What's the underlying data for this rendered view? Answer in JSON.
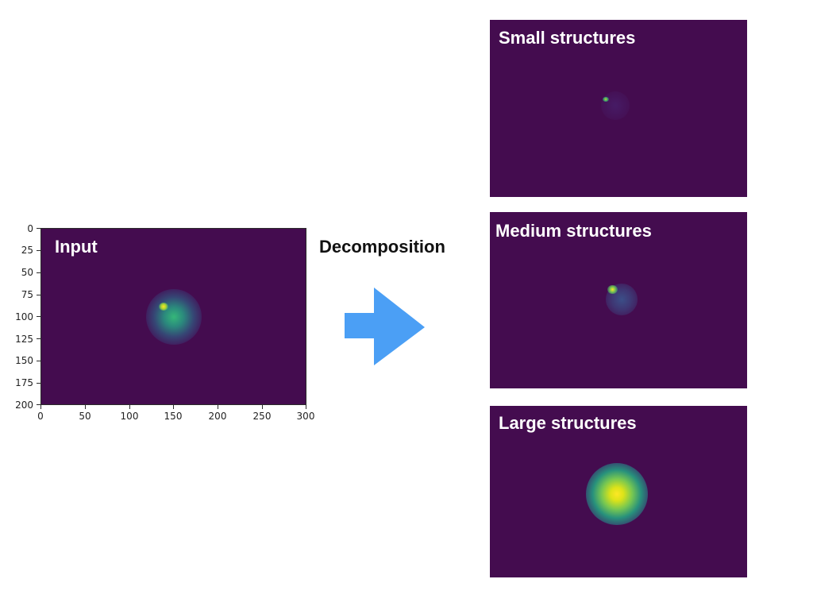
{
  "input_panel": {
    "title": "Input",
    "y_ticks": [
      "0",
      "25",
      "50",
      "75",
      "100",
      "125",
      "150",
      "175",
      "200"
    ],
    "x_ticks": [
      "0",
      "50",
      "100",
      "150",
      "200",
      "250",
      "300"
    ]
  },
  "decomposition": {
    "label": "Decomposition",
    "arrow_color": "#4b9ff5"
  },
  "output_panels": {
    "small": {
      "title": "Small structures"
    },
    "medium": {
      "title": "Medium structures"
    },
    "large": {
      "title": "Large structures"
    }
  },
  "colors": {
    "panel_background": "#440c4f",
    "peak_yellow": "#fde725",
    "mid_green": "#35b779",
    "teal": "#21918c"
  }
}
